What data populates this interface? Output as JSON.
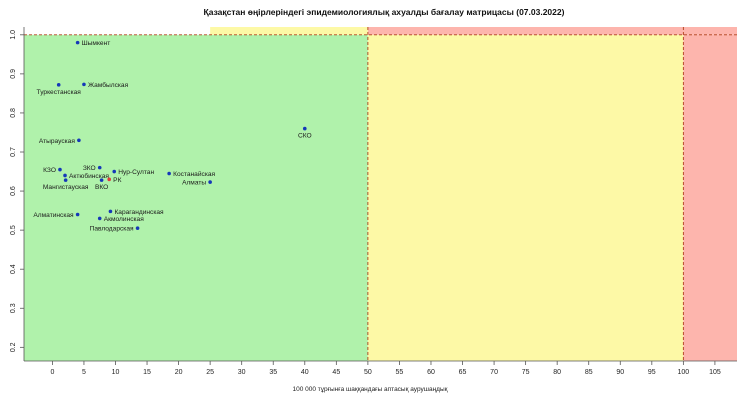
{
  "chart_data": {
    "type": "scatter",
    "title": "Қазақстан өңірлеріндегі эпидемиологиялық ахуалды бағалау матрицасы  (07.03.2022)",
    "xlabel": "100 000 тұрғынға шаққандағы аптасық аурушаңдық",
    "ylabel": "",
    "xlim": [
      -4.5,
      108.5
    ],
    "ylim": [
      0.165,
      1.02
    ],
    "x_ticks": [
      0,
      5,
      10,
      15,
      20,
      25,
      30,
      35,
      40,
      45,
      50,
      55,
      60,
      65,
      70,
      75,
      80,
      85,
      90,
      95,
      100,
      105
    ],
    "y_ticks": [
      0.2,
      0.3,
      0.4,
      0.5,
      0.6,
      0.7,
      0.8,
      0.9,
      1.0
    ],
    "grid": false,
    "zones": [
      {
        "name": "green",
        "x": [
          -4.5,
          50
        ],
        "y": [
          0.165,
          1.0
        ],
        "color": "#b0f2ab"
      },
      {
        "name": "yellow",
        "x": [
          50,
          100
        ],
        "y": [
          0.165,
          1.0
        ],
        "color": "#fdf9a6"
      },
      {
        "name": "yellow-top",
        "x": [
          25,
          50
        ],
        "y": [
          1.0,
          1.02
        ],
        "color": "#fdf9a6"
      },
      {
        "name": "red",
        "x": [
          50,
          108.5
        ],
        "y": [
          1.0,
          1.02
        ],
        "color": "#fdb5ad"
      },
      {
        "name": "red-right",
        "x": [
          100,
          108.5
        ],
        "y": [
          0.165,
          1.0
        ],
        "color": "#fdb5ad"
      }
    ],
    "threshold_lines": {
      "x": [
        50,
        100
      ],
      "y": [
        1.0
      ],
      "color": "#b0401c"
    },
    "points": [
      {
        "label": "Шымкент",
        "x": 4.0,
        "y": 0.98,
        "color": "#1538b8",
        "label_pos": "right"
      },
      {
        "label": "Жамбылская",
        "x": 5.0,
        "y": 0.873,
        "color": "#1538b8",
        "label_pos": "right"
      },
      {
        "label": "Туркестанская",
        "x": 1.0,
        "y": 0.872,
        "color": "#1538b8",
        "label_pos": "below"
      },
      {
        "label": "СКО",
        "x": 40.0,
        "y": 0.76,
        "color": "#1538b8",
        "label_pos": "below"
      },
      {
        "label": "Атырауская",
        "x": 4.2,
        "y": 0.73,
        "color": "#1538b8",
        "label_pos": "left"
      },
      {
        "label": "ЗКО",
        "x": 7.5,
        "y": 0.66,
        "color": "#1538b8",
        "label_pos": "left"
      },
      {
        "label": "КЗО",
        "x": 1.2,
        "y": 0.655,
        "color": "#1538b8",
        "label_pos": "left"
      },
      {
        "label": "Нур-Султан",
        "x": 9.8,
        "y": 0.65,
        "color": "#1538b8",
        "label_pos": "right"
      },
      {
        "label": "Костанайская",
        "x": 18.5,
        "y": 0.645,
        "color": "#1538b8",
        "label_pos": "right"
      },
      {
        "label": "Актюбинская",
        "x": 2.0,
        "y": 0.64,
        "color": "#1538b8",
        "label_pos": "right"
      },
      {
        "label": "РК",
        "x": 9.0,
        "y": 0.63,
        "color": "#e03c3c",
        "label_pos": "right"
      },
      {
        "label": "Мангистауская",
        "x": 2.1,
        "y": 0.628,
        "color": "#1538b8",
        "label_pos": "below"
      },
      {
        "label": "ВКО",
        "x": 7.8,
        "y": 0.628,
        "color": "#1538b8",
        "label_pos": "below"
      },
      {
        "label": "Алматы",
        "x": 25.0,
        "y": 0.623,
        "color": "#1538b8",
        "label_pos": "left"
      },
      {
        "label": "Карагандинская",
        "x": 9.2,
        "y": 0.548,
        "color": "#1538b8",
        "label_pos": "right"
      },
      {
        "label": "Алматинская",
        "x": 4.0,
        "y": 0.54,
        "color": "#1538b8",
        "label_pos": "left"
      },
      {
        "label": "Акмолинская",
        "x": 7.5,
        "y": 0.53,
        "color": "#1538b8",
        "label_pos": "right"
      },
      {
        "label": "Павлодарская",
        "x": 13.5,
        "y": 0.505,
        "color": "#1538b8",
        "label_pos": "left"
      }
    ]
  }
}
